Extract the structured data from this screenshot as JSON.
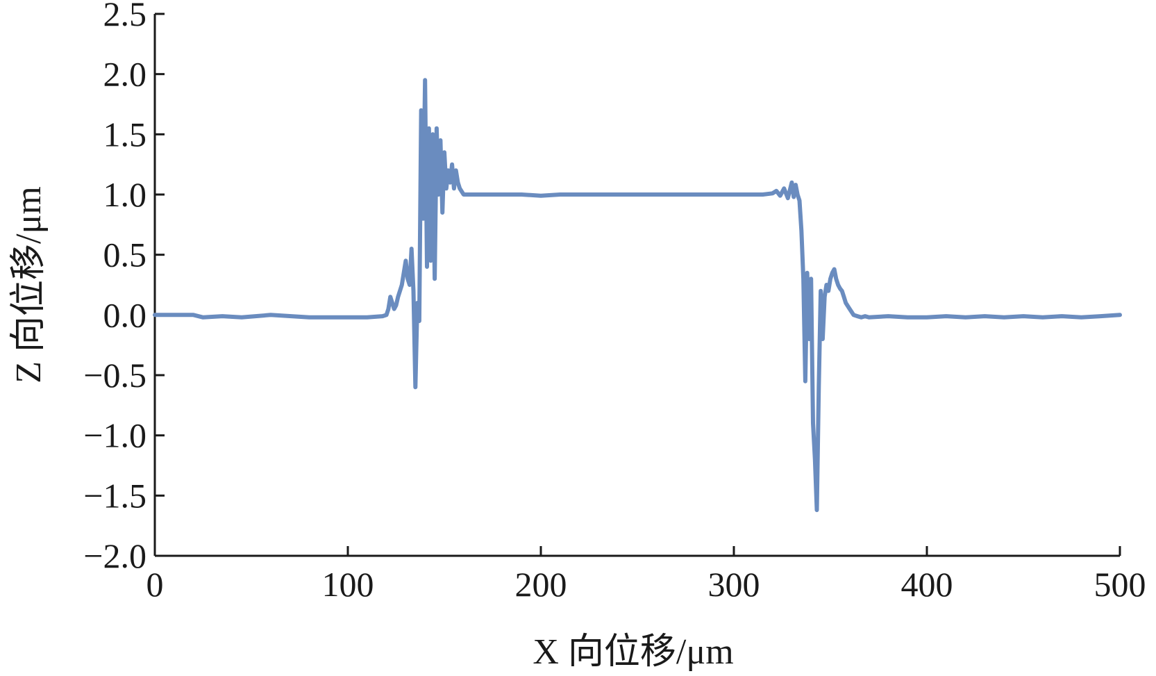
{
  "chart_data": {
    "type": "line",
    "title": "",
    "xlabel": "X 向位移/μm",
    "ylabel": "Z 向位移/μm",
    "xlim": [
      0,
      500
    ],
    "ylim": [
      -2.0,
      2.5
    ],
    "xticks": [
      0,
      100,
      200,
      300,
      400,
      500
    ],
    "xtick_labels": [
      "0",
      "100",
      "200",
      "300",
      "400",
      "500"
    ],
    "yticks": [
      -2.0,
      -1.5,
      -1.0,
      -0.5,
      0.0,
      0.5,
      1.0,
      1.5,
      2.0,
      2.5
    ],
    "ytick_labels": [
      "−2.0",
      "−1.5",
      "−1.0",
      "−0.5",
      "0.0",
      "0.5",
      "1.0",
      "1.5",
      "2.0",
      "2.5"
    ],
    "grid": false,
    "legend": "none",
    "line_color": "#6a8cbf",
    "series": [
      {
        "x": [
          0,
          20,
          25,
          35,
          45,
          60,
          80,
          100,
          110,
          118,
          120,
          121,
          122,
          124,
          125,
          126,
          128,
          129,
          130,
          131,
          132,
          133,
          134,
          135,
          136,
          137,
          138,
          139,
          140,
          141,
          142,
          143,
          144,
          145,
          146,
          147,
          148,
          149,
          150,
          151,
          152,
          153,
          154,
          155,
          156,
          157,
          158,
          160,
          165,
          170,
          180,
          190,
          200,
          210,
          220,
          230,
          240,
          250,
          260,
          270,
          280,
          290,
          300,
          310,
          315,
          320,
          322,
          324,
          326,
          328,
          330,
          331,
          332,
          333,
          334,
          335,
          336,
          337,
          338,
          339,
          340,
          341,
          342,
          343,
          344,
          345,
          346,
          347,
          348,
          349,
          350,
          351,
          352,
          353,
          354,
          355,
          356,
          357,
          358,
          360,
          362,
          364,
          366,
          368,
          370,
          380,
          390,
          400,
          410,
          420,
          430,
          440,
          450,
          460,
          470,
          480,
          490,
          500
        ],
        "y": [
          0.0,
          0.0,
          -0.02,
          -0.01,
          -0.02,
          0.0,
          -0.02,
          -0.02,
          -0.02,
          -0.01,
          0.0,
          0.05,
          0.15,
          0.05,
          0.08,
          0.15,
          0.25,
          0.35,
          0.45,
          0.3,
          0.25,
          0.55,
          0.2,
          -0.6,
          0.1,
          -0.05,
          1.7,
          0.8,
          1.95,
          0.4,
          1.55,
          0.45,
          1.5,
          0.3,
          1.55,
          1.0,
          1.45,
          0.85,
          1.35,
          1.05,
          1.2,
          1.1,
          1.25,
          1.05,
          1.2,
          1.1,
          1.05,
          1.0,
          1.0,
          1.0,
          1.0,
          1.0,
          0.99,
          1.0,
          1.0,
          1.0,
          1.0,
          1.0,
          1.0,
          1.0,
          1.0,
          1.0,
          1.0,
          1.0,
          1.0,
          1.01,
          1.03,
          0.99,
          1.05,
          0.97,
          1.1,
          0.98,
          1.08,
          1.0,
          0.95,
          0.7,
          0.3,
          -0.55,
          0.35,
          -0.2,
          0.3,
          -0.9,
          -1.2,
          -1.62,
          -0.6,
          0.2,
          -0.2,
          0.15,
          0.25,
          0.2,
          0.3,
          0.35,
          0.38,
          0.3,
          0.25,
          0.22,
          0.2,
          0.15,
          0.1,
          0.05,
          0.0,
          -0.01,
          -0.02,
          -0.01,
          -0.02,
          -0.01,
          -0.02,
          -0.02,
          -0.01,
          -0.02,
          -0.01,
          -0.02,
          -0.01,
          -0.02,
          -0.01,
          -0.02,
          -0.01,
          0.0
        ]
      }
    ]
  }
}
